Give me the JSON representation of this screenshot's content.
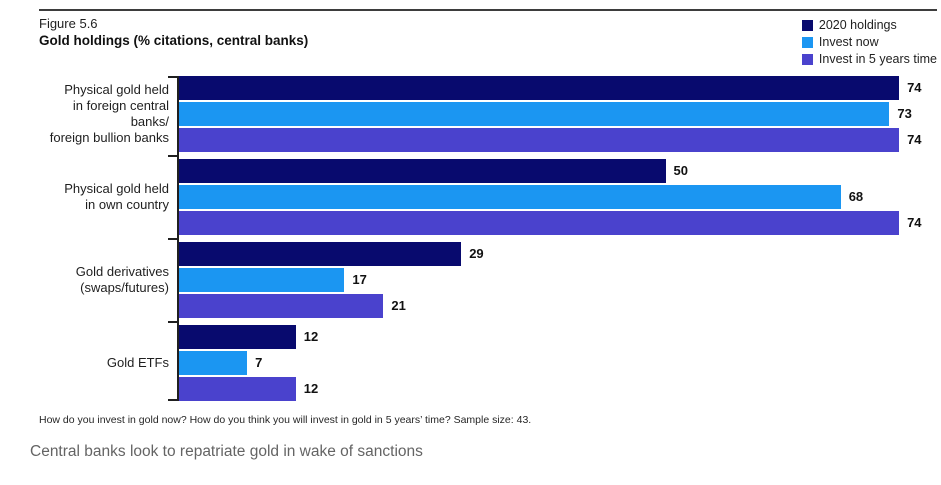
{
  "header": {
    "figure_label": "Figure 5.6",
    "title": "Gold holdings (% citations, central banks)"
  },
  "chart_data": {
    "type": "bar",
    "orientation": "horizontal",
    "title": "Gold holdings (% citations, central banks)",
    "categories": [
      "Physical gold held\nin foreign central banks/\nforeign bullion banks",
      "Physical gold held\nin own country",
      "Gold derivatives\n(swaps/futures)",
      "Gold ETFs"
    ],
    "series": [
      {
        "name": "2020 holdings",
        "color": "#080A6E",
        "values": [
          74,
          50,
          29,
          12
        ]
      },
      {
        "name": "Invest now",
        "color": "#1B96F2",
        "values": [
          73,
          68,
          17,
          7
        ]
      },
      {
        "name": "Invest in 5 years time",
        "color": "#4A42CD",
        "values": [
          74,
          74,
          21,
          12
        ]
      }
    ],
    "xlim": [
      0,
      78
    ],
    "value_labels": true,
    "grid": false,
    "legend_position": "top-right",
    "axis_color": "#1f1f1f"
  },
  "colors": {
    "rule": "#3d3d3d",
    "value_label": "#111111",
    "caption_text": "#646464",
    "background": "#ffffff"
  },
  "footnote": "How do you invest in gold now? How do you think you will invest in gold in 5 years’ time? Sample size: 43.",
  "caption": "Central banks look to repatriate gold in wake of sanctions"
}
